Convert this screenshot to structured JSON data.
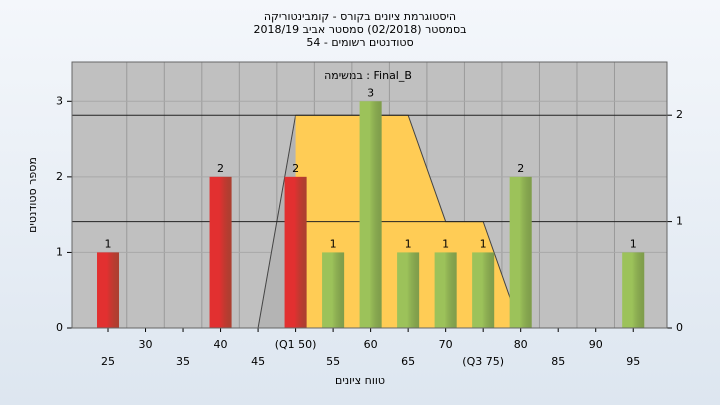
{
  "chart_data": {
    "type": "bar",
    "title": "היסטוגרמת ציונים בקורס - קומבינטוריקה",
    "subtitle": "בסמסטר (02/2018) סמסטר אביב 2018/19",
    "subtitle2": "סטודנטים רשומים - 54",
    "annotation": "במשימה : Final_B",
    "y_label": "מספר סטודנטים",
    "x_label": "טווח ציונים",
    "x": [
      25,
      30,
      35,
      40,
      45,
      50,
      55,
      60,
      65,
      70,
      75,
      80,
      85,
      90,
      95
    ],
    "values": [
      1,
      0,
      0,
      2,
      0,
      2,
      1,
      3,
      1,
      1,
      1,
      2,
      0,
      0,
      1
    ],
    "colors": [
      "#e23030",
      "#9cc25a",
      "#9cc25a",
      "#e23030",
      "#e23030",
      "#e23030",
      "#9cc25a",
      "#9cc25a",
      "#9cc25a",
      "#9cc25a",
      "#9cc25a",
      "#9cc25a",
      "#9cc25a",
      "#9cc25a",
      "#9cc25a"
    ],
    "xlim": [
      20.2,
      99.5
    ],
    "xticks": [
      25,
      30,
      35,
      40,
      45,
      {
        "value": 50,
        "label": "(Q1 50)"
      },
      55,
      60,
      65,
      70,
      {
        "value": 75,
        "label": "(Q3 75)"
      },
      80,
      85,
      90,
      95
    ],
    "ylim": [
      0,
      3.52
    ],
    "yticks": [
      0,
      1,
      2,
      3
    ],
    "y2lim": [
      0,
      2.5
    ],
    "y2ticks": [
      0,
      1,
      2
    ],
    "areas": [
      {
        "color": "#b4b4b4",
        "x": [
          45,
          50
        ],
        "values": [
          0,
          2
        ],
        "axis": "y2"
      },
      {
        "color": "#ffcc55",
        "x": [
          50,
          65,
          70,
          75,
          80
        ],
        "values": [
          2,
          2,
          1,
          1,
          0
        ],
        "axis": "y2"
      }
    ],
    "grid": true
  }
}
